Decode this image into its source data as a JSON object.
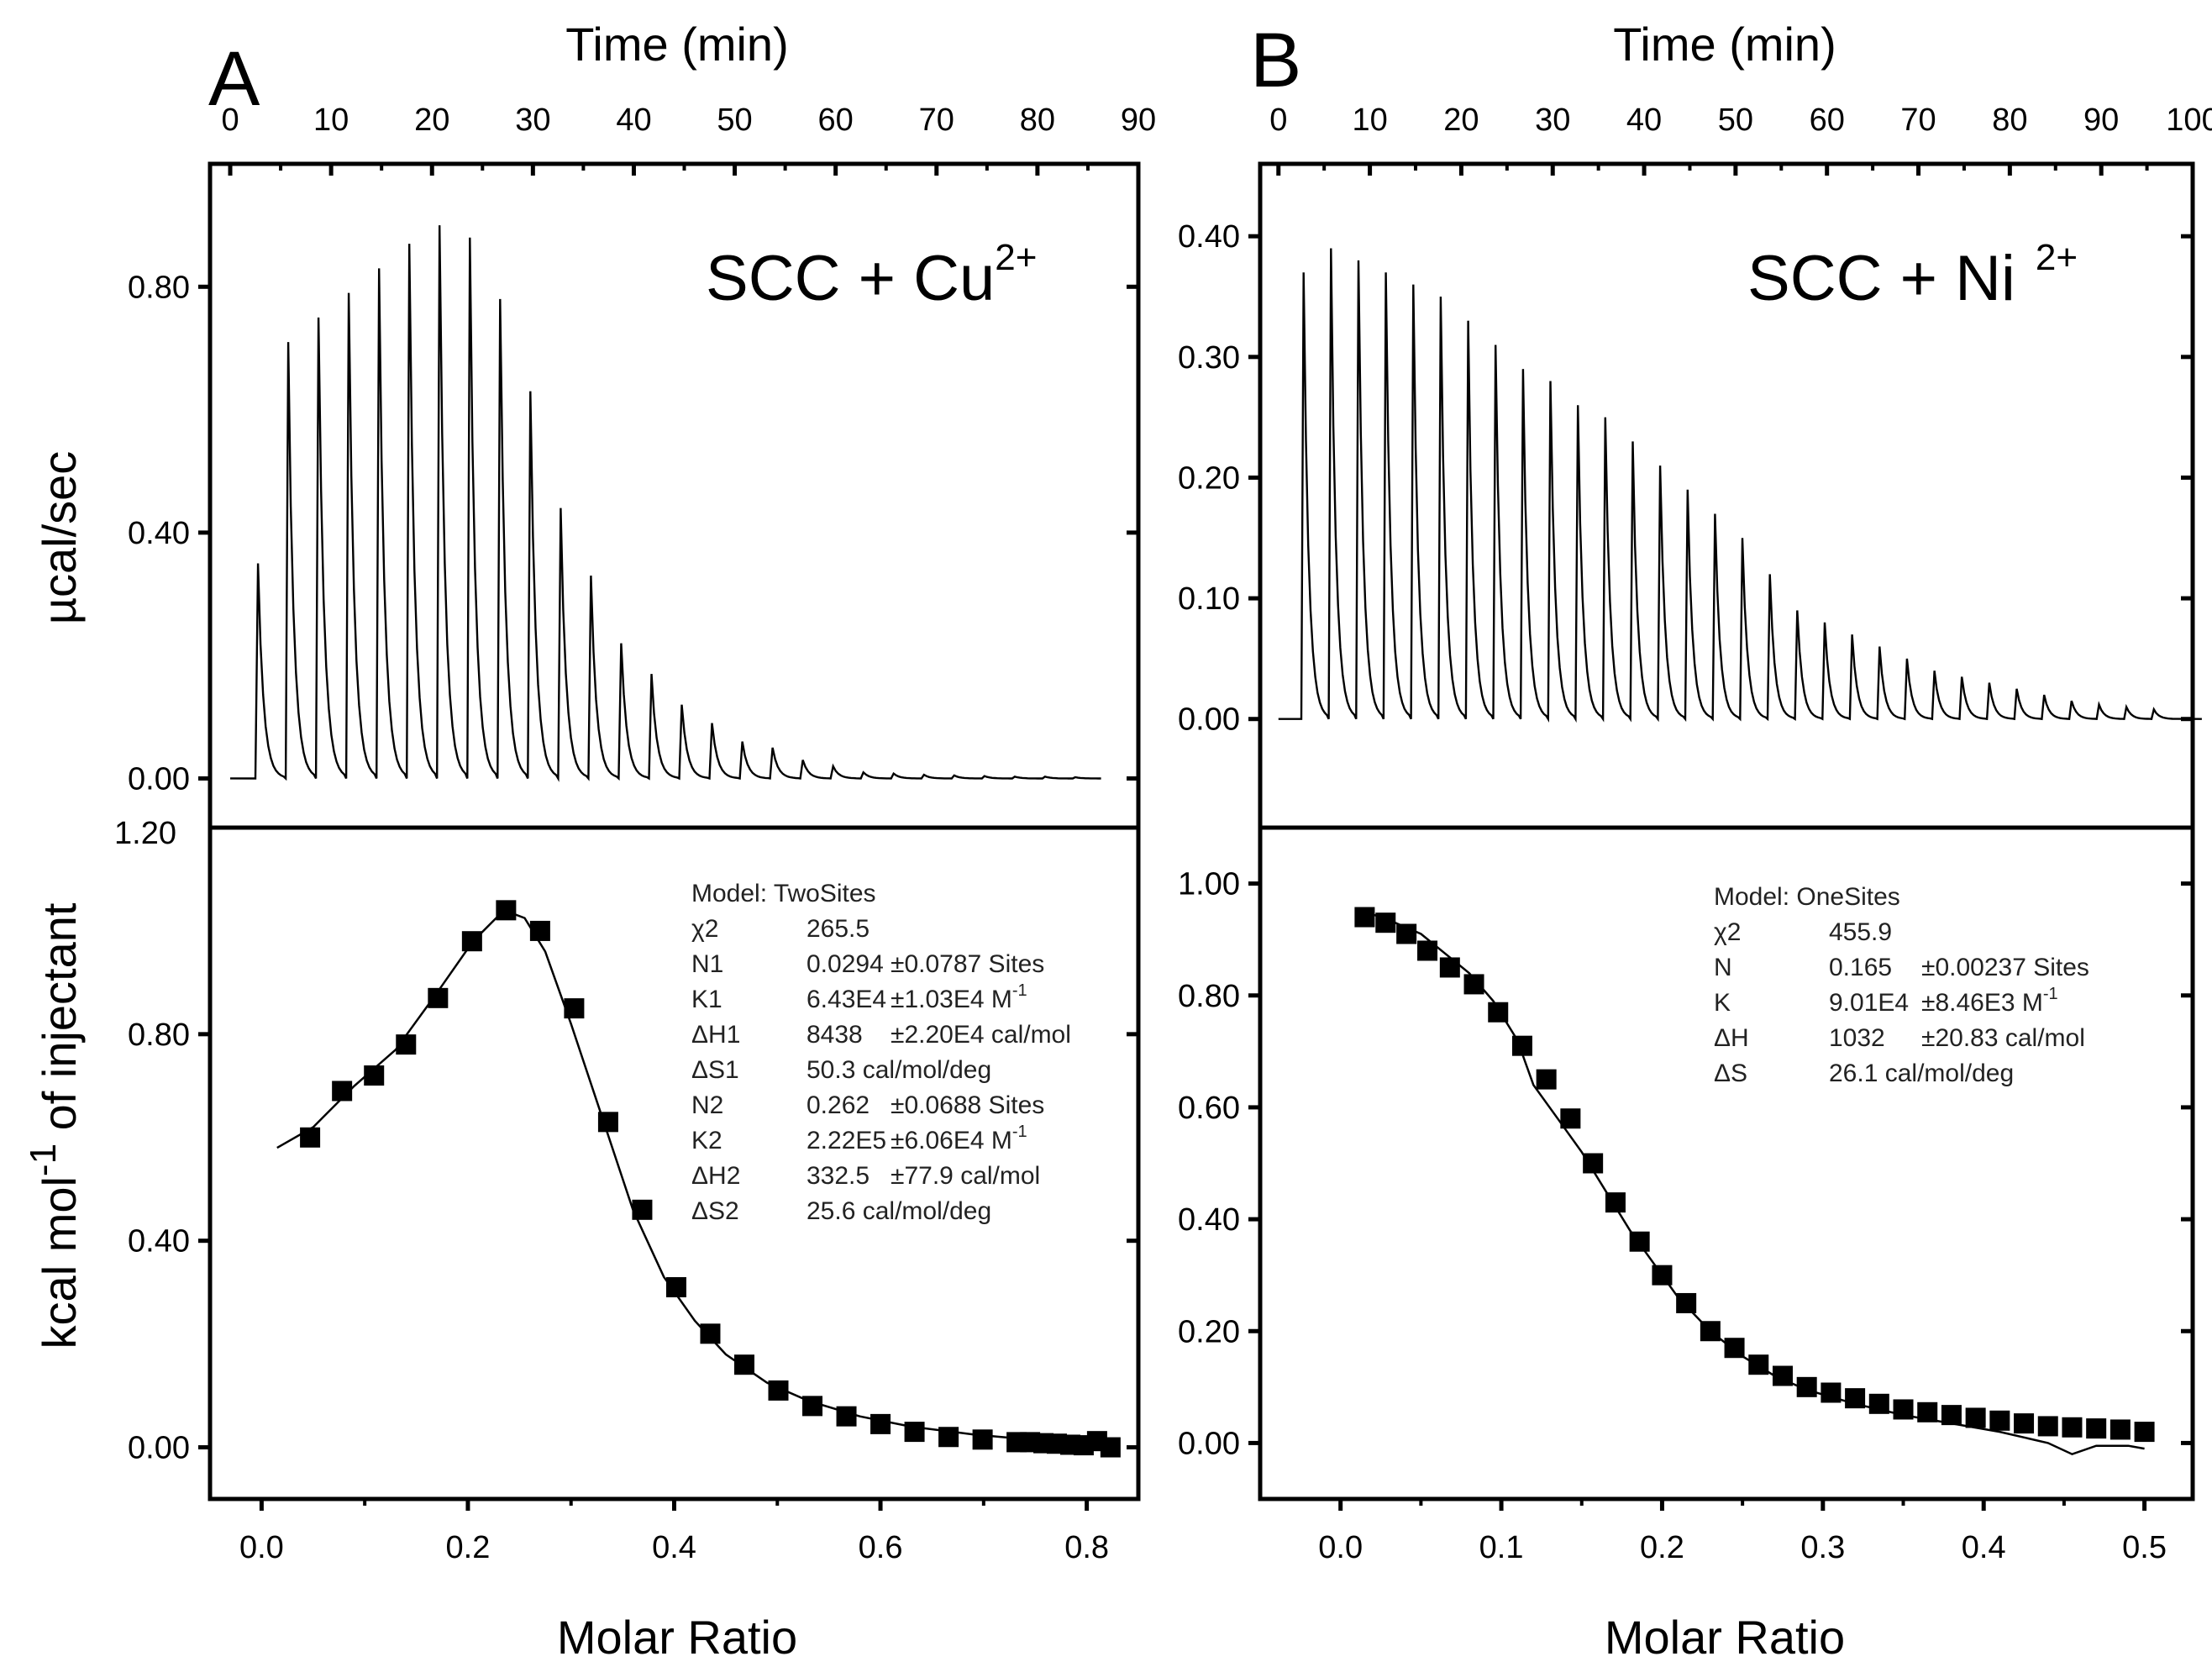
{
  "chart_data": [
    {
      "panel": "A",
      "type": "line",
      "role": "raw-thermogram",
      "title": "SCC + Cu",
      "title_superscript": "2+",
      "xlabel": "Time (min)",
      "ylabel": "µcal/sec",
      "xlim": [
        -2,
        90
      ],
      "ylim": [
        -0.08,
        1.0
      ],
      "xticks": [
        0,
        10,
        20,
        30,
        40,
        50,
        60,
        70,
        80,
        90
      ],
      "xtick_labels": [
        "0",
        "10",
        "20",
        "30",
        "40",
        "50",
        "60",
        "70",
        "80",
        "90"
      ],
      "yticks": [
        0.0,
        0.4,
        0.8
      ],
      "ytick_labels": [
        "0.00",
        "0.40",
        "0.80"
      ],
      "extra_label": "1.20",
      "injection_times": [
        2.5,
        5.5,
        8.5,
        11.5,
        14.5,
        17.5,
        20.5,
        23.5,
        26.5,
        29.5,
        32.5,
        35.5,
        38.5,
        41.5,
        44.5,
        47.5,
        50.5,
        53.5,
        56.5,
        59.5,
        62.5,
        65.5,
        68.5,
        71.5,
        74.5,
        77.5,
        80.5,
        83.5
      ],
      "peak_heights": [
        0.35,
        0.71,
        0.75,
        0.79,
        0.83,
        0.87,
        0.9,
        0.88,
        0.78,
        0.63,
        0.44,
        0.33,
        0.22,
        0.17,
        0.12,
        0.09,
        0.06,
        0.05,
        0.03,
        0.02,
        0.01,
        0.008,
        0.006,
        0.005,
        0.004,
        0.003,
        0.003,
        0.002
      ],
      "baseline_end": 86
    },
    {
      "panel": "A",
      "type": "scatter",
      "role": "binding-isotherm",
      "xlabel": "Molar Ratio",
      "ylabel": "kcal mol",
      "ylabel_superscript": "-1",
      "ylabel_suffix": "of injectant",
      "xlim": [
        -0.05,
        0.85
      ],
      "ylim": [
        -0.1,
        1.2
      ],
      "xticks": [
        0.0,
        0.2,
        0.4,
        0.6,
        0.8
      ],
      "xtick_labels": [
        "0.0",
        "0.2",
        "0.4",
        "0.6",
        "0.8"
      ],
      "yticks": [
        0.0,
        0.4,
        0.8
      ],
      "ytick_labels": [
        "0.00",
        "0.40",
        "0.80"
      ],
      "points": {
        "x": [
          0.047,
          0.078,
          0.109,
          0.14,
          0.171,
          0.204,
          0.237,
          0.27,
          0.303,
          0.336,
          0.369,
          0.402,
          0.435,
          0.468,
          0.501,
          0.534,
          0.567,
          0.6,
          0.633,
          0.666,
          0.699,
          0.732,
          0.745,
          0.758,
          0.771,
          0.784,
          0.797,
          0.81,
          0.823
        ],
        "y": [
          0.6,
          0.69,
          0.72,
          0.78,
          0.87,
          0.98,
          1.04,
          1.0,
          0.85,
          0.63,
          0.46,
          0.31,
          0.22,
          0.16,
          0.11,
          0.08,
          0.06,
          0.045,
          0.03,
          0.02,
          0.015,
          0.01,
          0.01,
          0.008,
          0.007,
          0.005,
          0.004,
          0.012,
          0.0
        ]
      },
      "fit": {
        "x": [
          0.015,
          0.05,
          0.09,
          0.13,
          0.17,
          0.205,
          0.235,
          0.255,
          0.275,
          0.3,
          0.33,
          0.36,
          0.39,
          0.42,
          0.45,
          0.49,
          0.53,
          0.58,
          0.63,
          0.69,
          0.75,
          0.8,
          0.825
        ],
        "y": [
          0.58,
          0.62,
          0.7,
          0.77,
          0.88,
          0.98,
          1.04,
          1.025,
          0.96,
          0.82,
          0.64,
          0.46,
          0.33,
          0.245,
          0.18,
          0.125,
          0.09,
          0.06,
          0.04,
          0.025,
          0.014,
          0.006,
          0.003
        ]
      },
      "fit_results": [
        [
          "Model: TwoSites",
          "",
          ""
        ],
        [
          "χ2",
          "265.5",
          ""
        ],
        [
          "N1",
          "0.0294",
          "±0.0787 Sites"
        ],
        [
          "K1",
          "6.43E4",
          "±1.03E4 M"
        ],
        [
          "ΔH1",
          "8438",
          "±2.20E4 cal/mol"
        ],
        [
          "ΔS1",
          "50.3 cal/mol/deg",
          ""
        ],
        [
          "N2",
          "0.262",
          "±0.0688 Sites"
        ],
        [
          "K2",
          "2.22E5",
          "±6.06E4 M"
        ],
        [
          "ΔH2",
          "332.5",
          "±77.9 cal/mol"
        ],
        [
          "ΔS2",
          "25.6 cal/mol/deg",
          ""
        ]
      ]
    },
    {
      "panel": "B",
      "type": "line",
      "role": "raw-thermogram",
      "title": "SCC + Ni",
      "title_superscript": "2+",
      "xlabel": "Time (min)",
      "ylabel": "",
      "xlim": [
        -2,
        100
      ],
      "ylim": [
        -0.09,
        0.46
      ],
      "xticks": [
        0,
        10,
        20,
        30,
        40,
        50,
        60,
        70,
        80,
        90,
        100
      ],
      "xtick_labels": [
        "0",
        "10",
        "20",
        "30",
        "40",
        "50",
        "60",
        "70",
        "80",
        "90",
        "100"
      ],
      "yticks": [
        0.0,
        0.1,
        0.2,
        0.3,
        0.4
      ],
      "ytick_labels": [
        "0.00",
        "0.10",
        "0.20",
        "0.30",
        "0.40"
      ],
      "injection_times": [
        2.5,
        5.5,
        8.5,
        11.5,
        14.5,
        17.5,
        20.5,
        23.5,
        26.5,
        29.5,
        32.5,
        35.5,
        38.5,
        41.5,
        44.5,
        47.5,
        50.5,
        53.5,
        56.5,
        59.5,
        62.5,
        65.5,
        68.5,
        71.5,
        74.5,
        77.5,
        80.5,
        83.5,
        86.5,
        89.5,
        92.5,
        95.5
      ],
      "peak_heights": [
        0.37,
        0.39,
        0.38,
        0.37,
        0.36,
        0.35,
        0.33,
        0.31,
        0.29,
        0.28,
        0.26,
        0.25,
        0.23,
        0.21,
        0.19,
        0.17,
        0.15,
        0.12,
        0.09,
        0.08,
        0.07,
        0.06,
        0.05,
        0.04,
        0.035,
        0.03,
        0.025,
        0.02,
        0.015,
        0.012,
        0.01,
        0.008
      ],
      "baseline_end": 101
    },
    {
      "panel": "B",
      "type": "scatter",
      "role": "binding-isotherm",
      "xlabel": "Molar Ratio",
      "ylabel": "",
      "xlim": [
        -0.05,
        0.53
      ],
      "ylim": [
        -0.1,
        1.1
      ],
      "xticks": [
        0.0,
        0.1,
        0.2,
        0.3,
        0.4,
        0.5
      ],
      "xtick_labels": [
        "0.0",
        "0.1",
        "0.2",
        "0.3",
        "0.4",
        "0.5"
      ],
      "yticks": [
        0.0,
        0.2,
        0.4,
        0.6,
        0.8,
        1.0
      ],
      "ytick_labels": [
        "0.00",
        "0.20",
        "0.40",
        "0.60",
        "0.80",
        "1.00"
      ],
      "points": {
        "x": [
          0.015,
          0.028,
          0.041,
          0.054,
          0.068,
          0.083,
          0.098,
          0.113,
          0.128,
          0.143,
          0.157,
          0.171,
          0.186,
          0.2,
          0.215,
          0.23,
          0.245,
          0.26,
          0.275,
          0.29,
          0.305,
          0.32,
          0.335,
          0.35,
          0.365,
          0.38,
          0.395,
          0.41,
          0.425,
          0.44,
          0.455,
          0.47,
          0.485,
          0.5
        ],
        "y": [
          0.94,
          0.93,
          0.91,
          0.88,
          0.85,
          0.82,
          0.77,
          0.71,
          0.65,
          0.58,
          0.5,
          0.43,
          0.36,
          0.3,
          0.25,
          0.2,
          0.17,
          0.14,
          0.12,
          0.1,
          0.09,
          0.08,
          0.07,
          0.06,
          0.055,
          0.05,
          0.045,
          0.04,
          0.035,
          0.03,
          0.028,
          0.026,
          0.024,
          0.02
        ]
      },
      "fit": {
        "x": [
          0.015,
          0.03,
          0.05,
          0.065,
          0.08,
          0.095,
          0.11,
          0.12,
          0.135,
          0.15,
          0.165,
          0.18,
          0.195,
          0.21,
          0.23,
          0.25,
          0.27,
          0.29,
          0.32,
          0.35,
          0.38,
          0.41,
          0.44,
          0.455,
          0.47,
          0.49,
          0.5
        ],
        "y": [
          0.95,
          0.935,
          0.91,
          0.875,
          0.84,
          0.79,
          0.72,
          0.64,
          0.58,
          0.52,
          0.45,
          0.38,
          0.32,
          0.26,
          0.2,
          0.155,
          0.12,
          0.095,
          0.07,
          0.05,
          0.035,
          0.02,
          0.0,
          -0.02,
          -0.005,
          -0.005,
          -0.01
        ]
      },
      "fit_results": [
        [
          "Model: OneSites",
          "",
          ""
        ],
        [
          "χ2",
          "455.9",
          ""
        ],
        [
          "N",
          "0.165",
          "±0.00237 Sites"
        ],
        [
          "K",
          "9.01E4",
          "±8.46E3 M"
        ],
        [
          "ΔH",
          "1032",
          "±20.83 cal/mol"
        ],
        [
          "ΔS",
          "26.1 cal/mol/deg",
          ""
        ]
      ]
    }
  ],
  "panel_letters": [
    "A",
    "B"
  ],
  "molar_unit_sup": "-1"
}
